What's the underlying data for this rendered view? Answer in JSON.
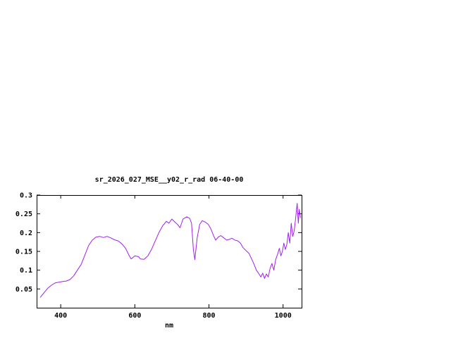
{
  "page": {
    "background": "#ffffff"
  },
  "chart_data": {
    "type": "line",
    "title": "sr_2026_027_MSE__y02_r_rad 06-40-00",
    "xlabel": "nm",
    "ylabel": "",
    "xlim": [
      335,
      1050
    ],
    "ylim": [
      0,
      0.3
    ],
    "xticks": [
      400,
      600,
      800,
      1000
    ],
    "yticks": [
      0.05,
      0.1,
      0.15,
      0.2,
      0.25,
      0.3
    ],
    "grid": false,
    "legend": "none",
    "line_color": "#a020f0",
    "axis_color": "#000000",
    "series": [
      {
        "name": "spectrum",
        "x": [
          345,
          355,
          365,
          375,
          385,
          395,
          405,
          415,
          425,
          435,
          445,
          455,
          465,
          475,
          485,
          495,
          505,
          515,
          525,
          535,
          545,
          555,
          565,
          575,
          585,
          590,
          600,
          610,
          615,
          625,
          635,
          645,
          655,
          665,
          675,
          685,
          692,
          700,
          708,
          715,
          722,
          730,
          740,
          748,
          753,
          758,
          762,
          768,
          775,
          782,
          790,
          798,
          805,
          812,
          818,
          825,
          832,
          840,
          848,
          855,
          862,
          870,
          878,
          885,
          892,
          900,
          908,
          915,
          922,
          928,
          935,
          940,
          945,
          950,
          955,
          960,
          965,
          970,
          975,
          980,
          985,
          990,
          994,
          998,
          1002,
          1006,
          1010,
          1014,
          1018,
          1022,
          1026,
          1030,
          1034,
          1038,
          1041,
          1044,
          1047
        ],
        "y": [
          0.028,
          0.04,
          0.052,
          0.06,
          0.066,
          0.068,
          0.07,
          0.071,
          0.075,
          0.085,
          0.1,
          0.115,
          0.14,
          0.165,
          0.18,
          0.188,
          0.19,
          0.187,
          0.19,
          0.186,
          0.181,
          0.178,
          0.17,
          0.158,
          0.138,
          0.13,
          0.138,
          0.136,
          0.13,
          0.129,
          0.138,
          0.155,
          0.178,
          0.2,
          0.218,
          0.23,
          0.225,
          0.236,
          0.228,
          0.222,
          0.213,
          0.236,
          0.242,
          0.238,
          0.225,
          0.155,
          0.128,
          0.185,
          0.222,
          0.232,
          0.228,
          0.222,
          0.21,
          0.193,
          0.18,
          0.188,
          0.192,
          0.186,
          0.18,
          0.182,
          0.185,
          0.18,
          0.178,
          0.172,
          0.16,
          0.152,
          0.145,
          0.13,
          0.115,
          0.1,
          0.09,
          0.082,
          0.092,
          0.078,
          0.09,
          0.082,
          0.105,
          0.118,
          0.1,
          0.128,
          0.142,
          0.158,
          0.138,
          0.15,
          0.172,
          0.155,
          0.168,
          0.2,
          0.172,
          0.225,
          0.19,
          0.205,
          0.24,
          0.278,
          0.225,
          0.262,
          0.24
        ]
      }
    ]
  }
}
